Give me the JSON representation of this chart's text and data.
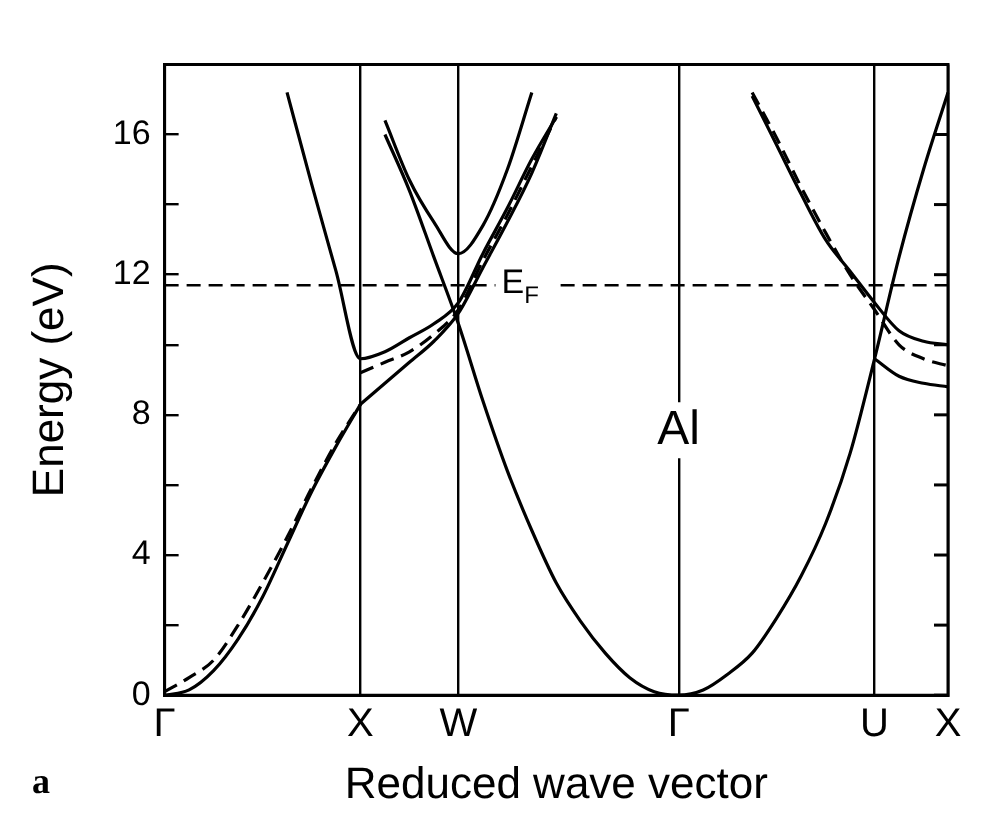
{
  "chart_data": {
    "type": "line",
    "xlabel": "Reduced wave vector",
    "ylabel": "Energy (eV)",
    "categories": [
      "Γ",
      null,
      null,
      null,
      null,
      null,
      null,
      null,
      "X",
      null,
      null,
      null,
      "W",
      null,
      null,
      null,
      null,
      null,
      null,
      null,
      null,
      "Γ",
      null,
      null,
      null,
      null,
      null,
      null,
      null,
      "U",
      null,
      null,
      "X"
    ],
    "ylim": [
      0,
      18
    ],
    "yticks": [
      0,
      {
        "value": 2,
        "label": null
      },
      4,
      {
        "value": 6,
        "label": null
      },
      8,
      {
        "value": 10,
        "label": null
      },
      12,
      {
        "value": 14,
        "label": null
      },
      16
    ],
    "grid": "x",
    "legend": false,
    "marker": "none",
    "line_style": "solid",
    "series": [
      {
        "color": "#000000",
        "values": [
          0,
          0.15,
          0.7,
          1.6,
          2.8,
          4.3,
          5.8,
          7.1,
          8.3,
          null,
          null,
          null,
          null,
          null,
          null,
          null,
          null,
          null,
          null,
          null,
          null,
          null,
          null,
          null,
          null,
          null,
          null,
          null,
          null,
          null,
          null,
          null,
          null
        ]
      },
      {
        "color": "#000000",
        "values": [
          null,
          null,
          null,
          null,
          null,
          17.2,
          14.6,
          12.1,
          9.6,
          9.8,
          10.2,
          10.6,
          11.2,
          12.6,
          13.9,
          15.3,
          16.5,
          null,
          null,
          null,
          null,
          null,
          null,
          null,
          null,
          null,
          null,
          null,
          null,
          null,
          null,
          null,
          null
        ]
      },
      {
        "color": "#000000",
        "values": [
          null,
          null,
          null,
          null,
          null,
          null,
          null,
          null,
          8.3,
          8.9,
          9.5,
          10.1,
          10.9,
          12.2,
          13.5,
          14.9,
          16.6,
          null,
          null,
          null,
          null,
          null,
          null,
          null,
          null,
          null,
          null,
          null,
          null,
          null,
          null,
          null,
          null
        ]
      },
      {
        "color": "#000000",
        "values": [
          null,
          null,
          null,
          null,
          null,
          null,
          null,
          null,
          null,
          16.4,
          14.7,
          13.5,
          12.6,
          13.4,
          15.0,
          17.2,
          null,
          null,
          null,
          null,
          null,
          null,
          null,
          null,
          null,
          null,
          null,
          null,
          null,
          null,
          null,
          null,
          null
        ]
      },
      {
        "color": "#000000",
        "values": [
          null,
          null,
          null,
          null,
          null,
          null,
          null,
          null,
          null,
          16.0,
          14.4,
          12.5,
          10.6,
          8.4,
          6.4,
          4.7,
          3.2,
          2.1,
          1.2,
          0.5,
          0.1,
          0,
          0.15,
          0.6,
          1.2,
          2.2,
          3.4,
          4.9,
          6.9,
          9.6,
          12.5,
          15.0,
          17.2
        ]
      },
      {
        "color": "#000000",
        "values": [
          null,
          null,
          null,
          null,
          null,
          null,
          null,
          null,
          null,
          null,
          null,
          null,
          null,
          null,
          null,
          null,
          null,
          null,
          null,
          null,
          null,
          null,
          null,
          null,
          17.1,
          15.7,
          14.3,
          13.0,
          12.1,
          11.2,
          10.4,
          10.1,
          10.0
        ]
      },
      {
        "color": "#000000",
        "values": [
          null,
          null,
          null,
          null,
          null,
          null,
          null,
          null,
          null,
          null,
          null,
          null,
          null,
          null,
          null,
          null,
          null,
          null,
          null,
          null,
          null,
          null,
          null,
          null,
          null,
          null,
          null,
          null,
          null,
          9.6,
          9.1,
          8.9,
          8.8
        ]
      },
      {
        "color": "#000000",
        "line_style": "dashed",
        "values": [
          0.1,
          0.5,
          1.0,
          2.0,
          3.2,
          4.5,
          5.9,
          7.2,
          8.3,
          null,
          null,
          null,
          null,
          null,
          null,
          null,
          null,
          null,
          null,
          null,
          null,
          null,
          null,
          null,
          null,
          null,
          null,
          null,
          null,
          null,
          null,
          null,
          null
        ]
      },
      {
        "color": "#000000",
        "line_style": "dashed",
        "values": [
          null,
          null,
          null,
          null,
          null,
          null,
          null,
          null,
          9.2,
          9.5,
          9.8,
          10.3,
          11.0,
          12.4,
          13.7,
          15.1,
          16.5,
          null,
          null,
          null,
          null,
          null,
          null,
          null,
          null,
          null,
          null,
          null,
          null,
          null,
          null,
          null,
          null
        ]
      },
      {
        "color": "#000000",
        "line_style": "dashed",
        "values": [
          null,
          null,
          null,
          null,
          null,
          null,
          null,
          null,
          null,
          null,
          null,
          null,
          null,
          null,
          null,
          null,
          null,
          null,
          null,
          null,
          null,
          null,
          null,
          null,
          17.2,
          15.9,
          14.5,
          13.2,
          12.0,
          11.0,
          10.0,
          9.6,
          9.4
        ]
      }
    ],
    "ref_lines": [
      {
        "axis": "y",
        "value": 11.7,
        "label": "E$_{F}$",
        "line_style": "dashed"
      }
    ],
    "annotations": [
      "Al",
      "a"
    ]
  }
}
